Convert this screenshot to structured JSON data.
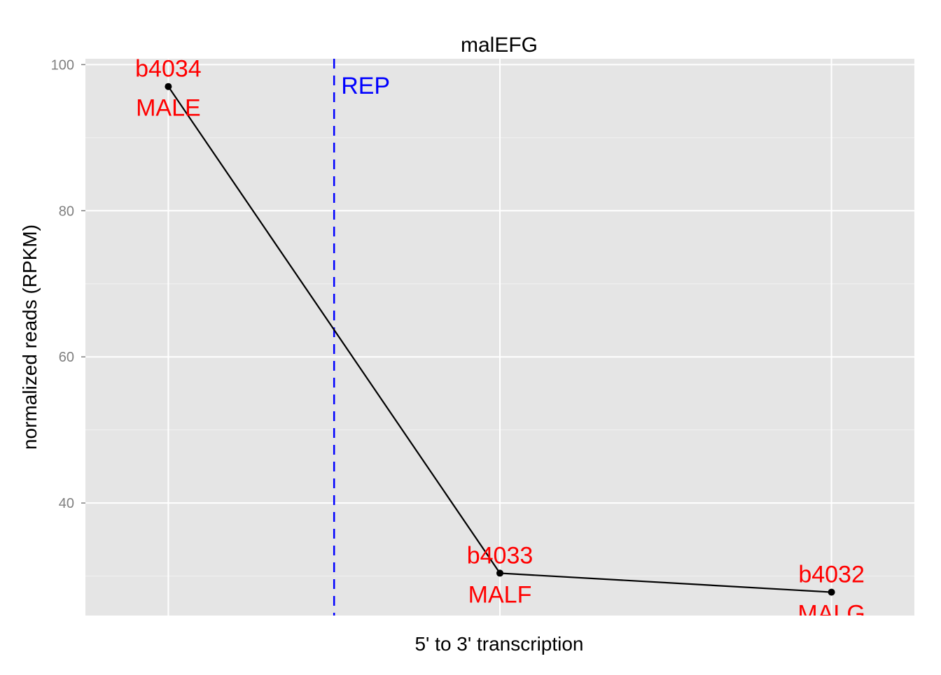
{
  "chart_data": {
    "type": "line",
    "title": "malEFG",
    "xlabel": "5' to 3' transcription",
    "ylabel": "normalized reads (RPKM)",
    "ylim": [
      24.6,
      100.8
    ],
    "y_ticks": [
      40,
      60,
      80,
      100
    ],
    "x_range": [
      0.75,
      3.25
    ],
    "grid": true,
    "points": [
      {
        "x": 1,
        "y": 97.0,
        "gene_id": "b4034",
        "gene_name": "MALE"
      },
      {
        "x": 2,
        "y": 30.4,
        "gene_id": "b4033",
        "gene_name": "MALF"
      },
      {
        "x": 3,
        "y": 27.8,
        "gene_id": "b4032",
        "gene_name": "MALG"
      }
    ],
    "annotation_line": {
      "x": 1.5,
      "label": "REP",
      "style": "dashed",
      "color": "#0000ff"
    },
    "colors": {
      "panel_bg": "#e5e5e5",
      "grid_major": "#ffffff",
      "grid_minor": "#f2f2f2",
      "line": "#000000",
      "point_label": "#ff0000",
      "annotation": "#0000ff",
      "tick_label": "#7f7f7f"
    }
  }
}
